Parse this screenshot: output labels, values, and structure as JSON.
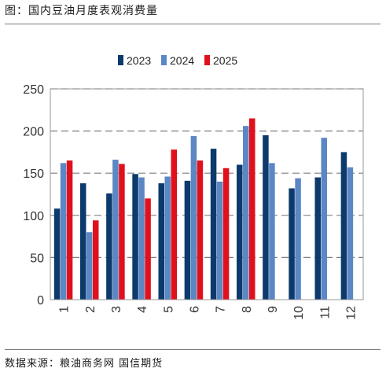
{
  "figure_title": "图：国内豆油月度表观消费量",
  "source": "数据来源：粮油商务网 国信期货",
  "colors": {
    "2023": "#0c3a6c",
    "2024": "#5b87c5",
    "2025": "#e0101c"
  },
  "chart_data": {
    "type": "bar",
    "title": "",
    "xlabel": "",
    "ylabel": "",
    "categories": [
      "1",
      "2",
      "3",
      "4",
      "5",
      "6",
      "7",
      "8",
      "9",
      "10",
      "11",
      "12"
    ],
    "ylim": [
      0,
      250
    ],
    "yticks": [
      0,
      50,
      100,
      150,
      200,
      250
    ],
    "grid": true,
    "legend": "top",
    "series": [
      {
        "name": "2023",
        "values": [
          108,
          138,
          126,
          149,
          138,
          141,
          179,
          160,
          195,
          132,
          145,
          175
        ]
      },
      {
        "name": "2024",
        "values": [
          162,
          80,
          166,
          145,
          146,
          194,
          140,
          206,
          162,
          144,
          192,
          157
        ]
      },
      {
        "name": "2025",
        "values": [
          165,
          94,
          161,
          120,
          178,
          165,
          156,
          215,
          null,
          null,
          null,
          null
        ]
      }
    ]
  }
}
